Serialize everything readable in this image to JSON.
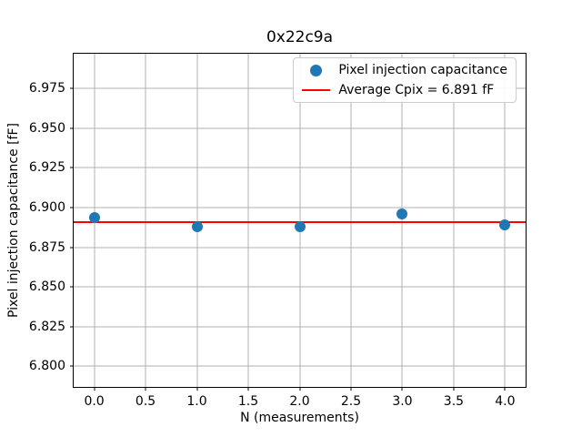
{
  "chart_data": {
    "type": "scatter",
    "title": "0x22c9a",
    "xlabel": "N (measurements)",
    "ylabel": "Pixel injection capacitance [fF]",
    "series_label": "Pixel injection capacitance",
    "x": [
      0,
      1,
      2,
      3,
      4
    ],
    "y": [
      6.894,
      6.888,
      6.888,
      6.896,
      6.889
    ],
    "marker_color": "#1f77b4",
    "average_line": {
      "label": "Average Cpix = 6.891 fF",
      "value": 6.891,
      "color": "#ff0000"
    },
    "xlim": [
      -0.2,
      4.2
    ],
    "ylim": [
      6.787,
      6.997
    ],
    "xticks": [
      0.0,
      0.5,
      1.0,
      1.5,
      2.0,
      2.5,
      3.0,
      3.5,
      4.0
    ],
    "xtick_labels": [
      "0.0",
      "0.5",
      "1.0",
      "1.5",
      "2.0",
      "2.5",
      "3.0",
      "3.5",
      "4.0"
    ],
    "yticks": [
      6.8,
      6.825,
      6.85,
      6.875,
      6.9,
      6.925,
      6.95,
      6.975
    ],
    "ytick_labels": [
      "6.800",
      "6.825",
      "6.850",
      "6.875",
      "6.900",
      "6.925",
      "6.950",
      "6.975"
    ],
    "grid": true,
    "legend_position": "upper right",
    "grid_color": "#b0b0b0"
  }
}
